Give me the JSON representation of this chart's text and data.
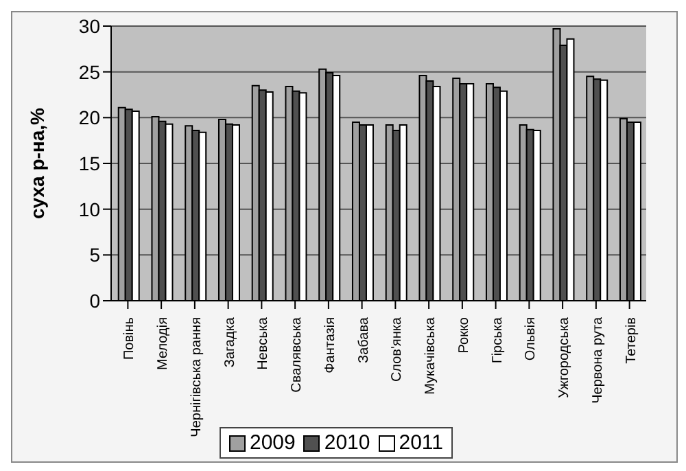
{
  "chart_data": {
    "type": "bar",
    "ylabel": "суха р-на,%",
    "categories": [
      "Повінь",
      "Мелодія",
      "Чернігівська рання",
      "Загадка",
      "Невська",
      "Свалявська",
      "Фантазія",
      "Забава",
      "Слов'янка",
      "Мукачівська",
      "Рокко",
      "Гірська",
      "Ольвія",
      "Ужгородська",
      "Червона рута",
      "Тетерів"
    ],
    "series": [
      {
        "name": "2009",
        "color": "#a0a0a0",
        "values": [
          21.1,
          20.1,
          19.1,
          19.8,
          23.5,
          23.4,
          25.3,
          19.5,
          19.2,
          24.6,
          24.3,
          23.7,
          19.2,
          29.7,
          24.5,
          19.9
        ]
      },
      {
        "name": "2010",
        "color": "#505050",
        "values": [
          20.9,
          19.6,
          18.6,
          19.3,
          23.0,
          22.9,
          24.9,
          19.2,
          18.6,
          24.0,
          23.7,
          23.3,
          18.7,
          27.9,
          24.2,
          19.5
        ]
      },
      {
        "name": "2011",
        "color": "#ffffff",
        "values": [
          20.7,
          19.3,
          18.4,
          19.2,
          22.8,
          22.7,
          24.6,
          19.2,
          19.2,
          23.4,
          23.7,
          22.9,
          18.6,
          28.6,
          24.1,
          19.5
        ]
      }
    ],
    "ylim": [
      0,
      30
    ],
    "yticks": [
      0,
      5,
      10,
      15,
      20,
      25,
      30
    ],
    "grid": "y",
    "legend": "bottom"
  }
}
